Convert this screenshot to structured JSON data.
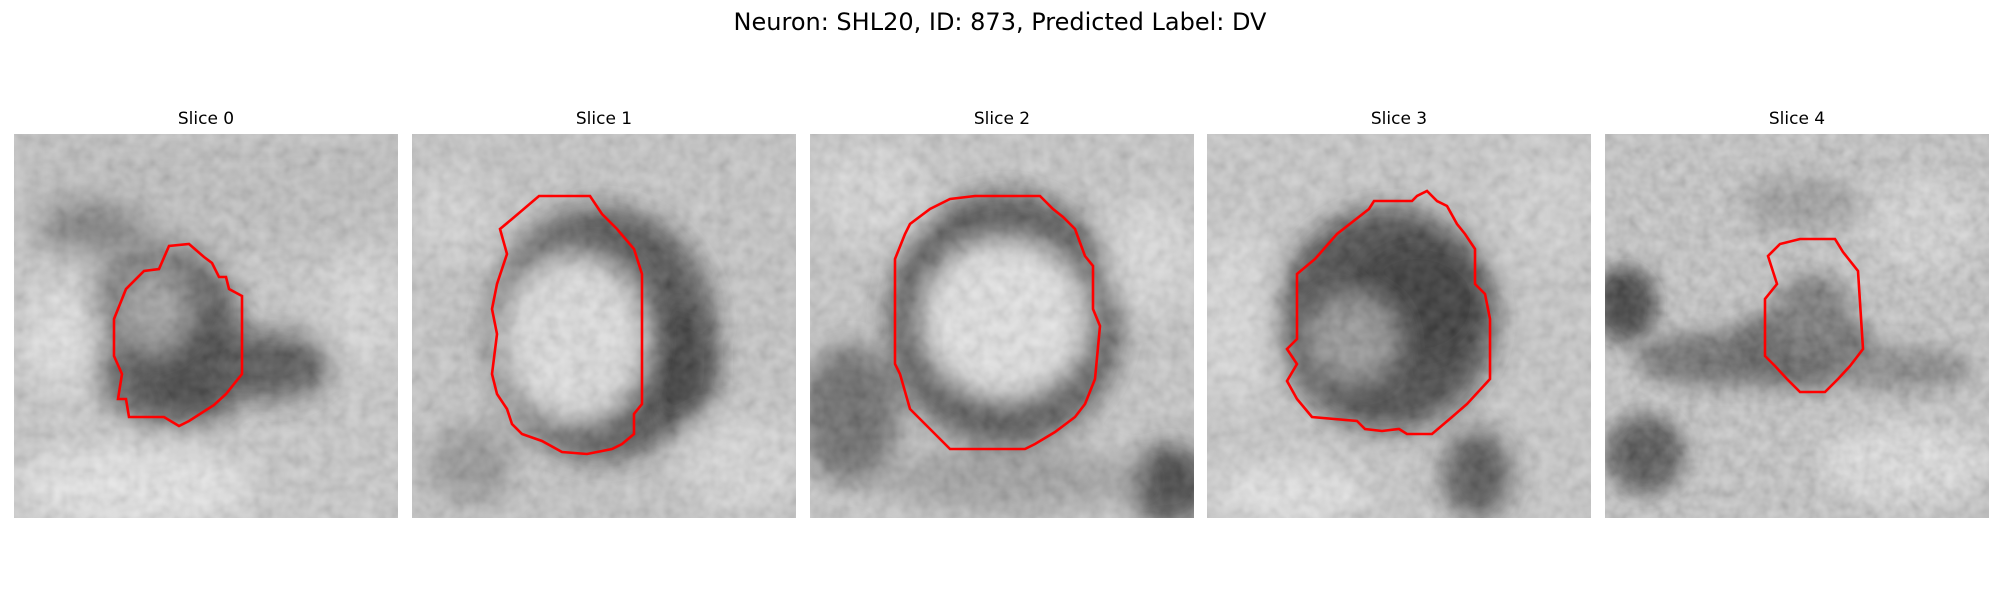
{
  "figure": {
    "title": "Neuron: SHL20, ID: 873, Predicted Label: DV"
  },
  "panels": [
    {
      "title": "Slice 0",
      "contour_color": "#ff0000",
      "colormap": "gray"
    },
    {
      "title": "Slice 1",
      "contour_color": "#ff0000",
      "colormap": "gray"
    },
    {
      "title": "Slice 2",
      "contour_color": "#ff0000",
      "colormap": "gray"
    },
    {
      "title": "Slice 3",
      "contour_color": "#ff0000",
      "colormap": "gray"
    },
    {
      "title": "Slice 4",
      "contour_color": "#ff0000",
      "colormap": "gray"
    }
  ]
}
